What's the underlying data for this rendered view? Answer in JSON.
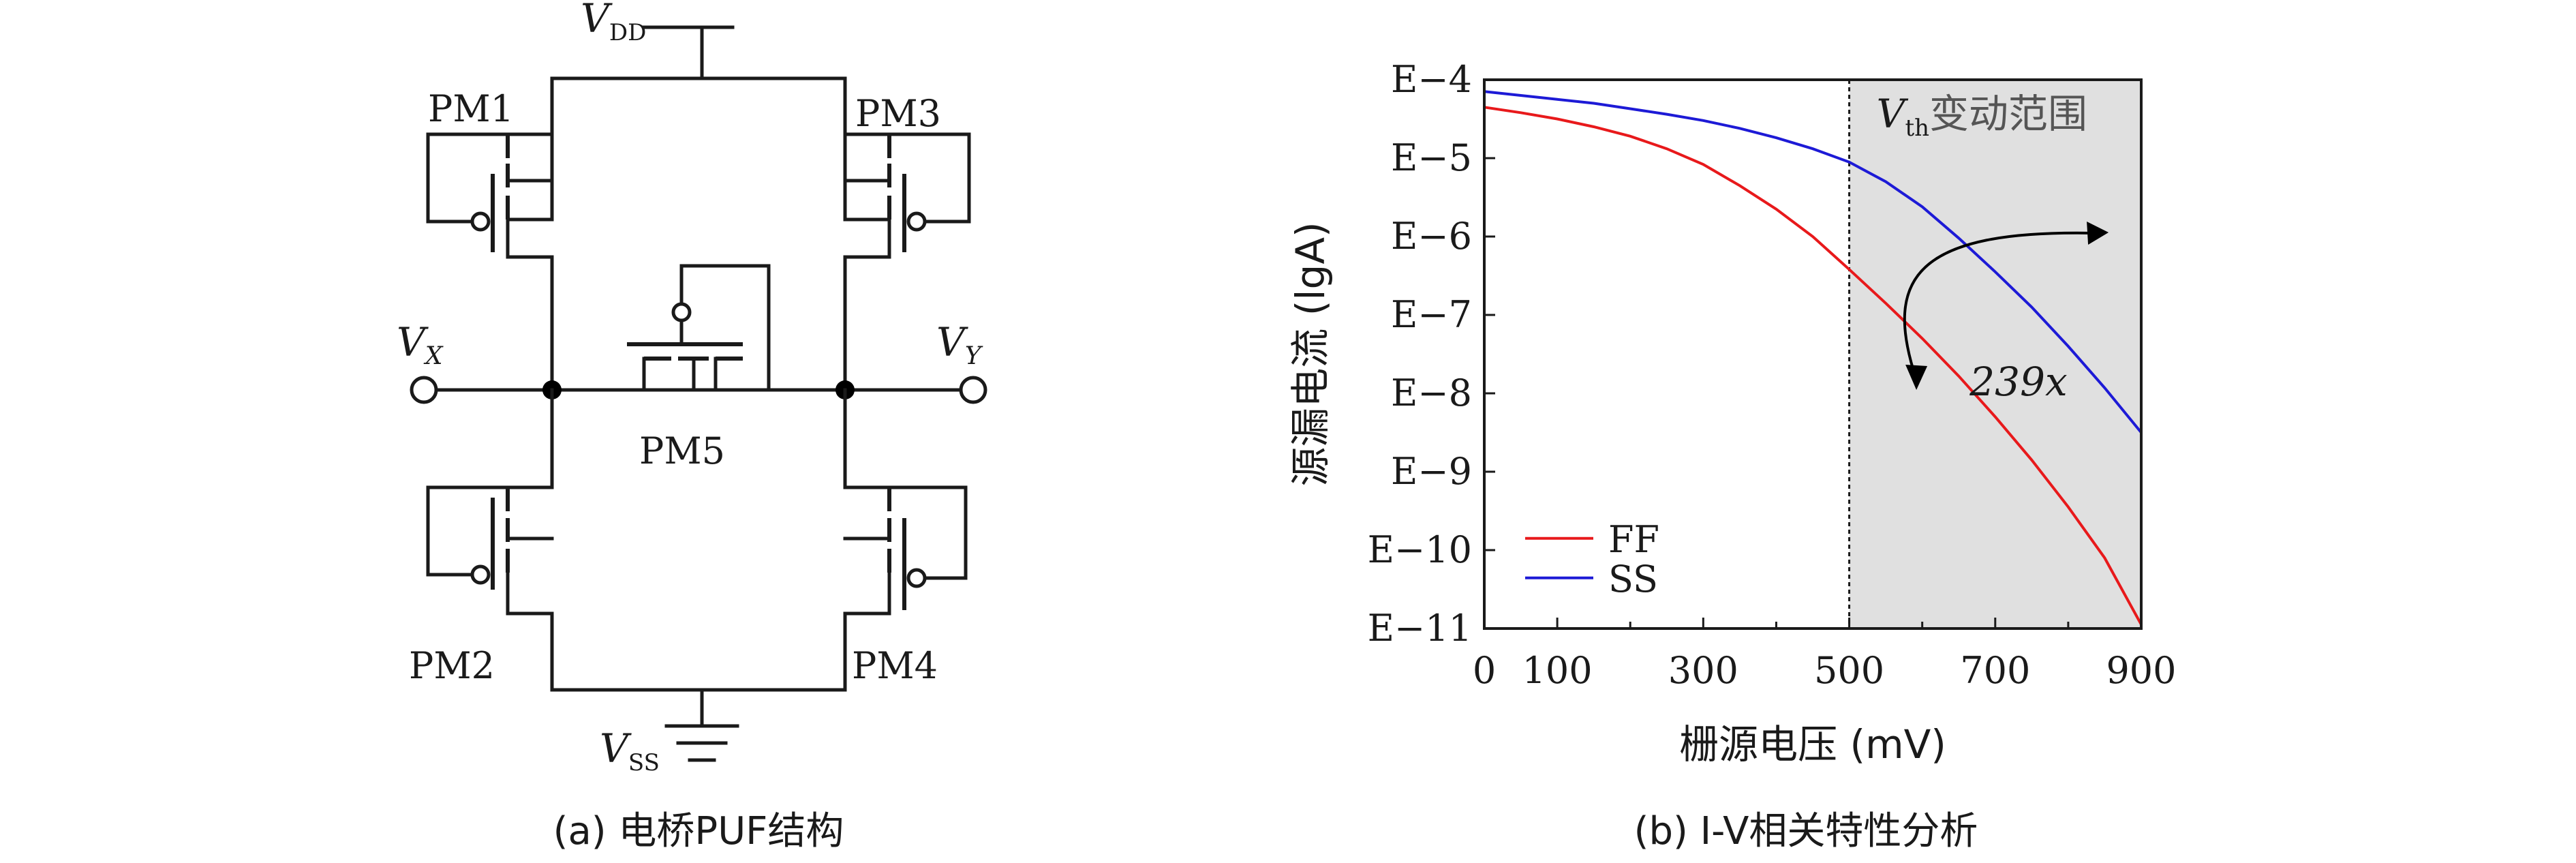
{
  "panel_a": {
    "caption": "(a) 电桥PUF结构",
    "labels": {
      "vdd_main": "V",
      "vdd_sub": "DD",
      "vss_main": "V",
      "vss_sub": "SS",
      "vx_main": "V",
      "vx_sub": "X",
      "vy_main": "V",
      "vy_sub": "Y",
      "pm1": "PM1",
      "pm2": "PM2",
      "pm3": "PM3",
      "pm4": "PM4",
      "pm5": "PM5"
    }
  },
  "panel_b": {
    "caption": "(b) I-V相关特性分析",
    "xlabel": "栅源电压 (mV)",
    "ylabel": "源漏电流 (lgA)",
    "shade_label_main": "V",
    "shade_label_sub": "th",
    "shade_label_rest": "变动范围",
    "ratio_label": "239x",
    "colors": {
      "ff": "#e8191b",
      "ss": "#1d1ad6",
      "shade": "#e0e0e0",
      "ratio": "#1d1ad6"
    }
  },
  "chart_data": {
    "type": "line",
    "x_range": [
      0,
      900
    ],
    "y_range": [
      -11,
      -4
    ],
    "x_ticks": [
      0,
      100,
      300,
      500,
      700,
      900
    ],
    "x_minor_ticks": [
      200,
      400,
      600,
      800
    ],
    "y_ticks": [
      -4,
      -5,
      -6,
      -7,
      -8,
      -9,
      -10,
      -11
    ],
    "y_tick_labels": [
      "E−4",
      "E−5",
      "E−6",
      "E−7",
      "E−8",
      "E−9",
      "E−10",
      "E−11"
    ],
    "shaded_region": [
      500,
      900
    ],
    "vline": 500,
    "legend": "bottom-left",
    "series": [
      {
        "name": "FF",
        "x": [
          0,
          50,
          100,
          150,
          200,
          250,
          300,
          350,
          400,
          450,
          500,
          550,
          600,
          650,
          700,
          750,
          800,
          850,
          900
        ],
        "y": [
          -4.35,
          -4.42,
          -4.5,
          -4.6,
          -4.72,
          -4.88,
          -5.08,
          -5.35,
          -5.65,
          -6.0,
          -6.42,
          -6.85,
          -7.3,
          -7.78,
          -8.3,
          -8.85,
          -9.45,
          -10.1,
          -10.95
        ]
      },
      {
        "name": "SS",
        "x": [
          0,
          50,
          100,
          150,
          200,
          250,
          300,
          350,
          400,
          450,
          500,
          550,
          600,
          650,
          700,
          750,
          800,
          850,
          900
        ],
        "y": [
          -4.15,
          -4.2,
          -4.25,
          -4.3,
          -4.37,
          -4.44,
          -4.52,
          -4.62,
          -4.74,
          -4.88,
          -5.05,
          -5.3,
          -5.62,
          -6.02,
          -6.45,
          -6.9,
          -7.4,
          -7.93,
          -8.5
        ]
      }
    ]
  }
}
